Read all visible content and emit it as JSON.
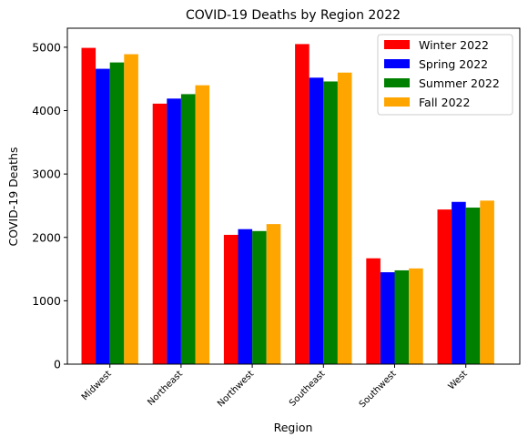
{
  "chart_data": {
    "type": "bar",
    "title": "COVID-19 Deaths by Region 2022",
    "xlabel": "Region",
    "ylabel": "COVID-19 Deaths",
    "categories": [
      "Midwest",
      "Northeast",
      "Northwest",
      "Southeast",
      "Southwest",
      "West"
    ],
    "ylim": [
      0,
      5300
    ],
    "yticks": [
      0,
      1000,
      2000,
      3000,
      4000,
      5000
    ],
    "legend_position": "top-right",
    "grid": false,
    "series": [
      {
        "name": "Winter 2022",
        "color": "#ff0000",
        "values": [
          4990,
          4110,
          2040,
          5050,
          1670,
          2440
        ]
      },
      {
        "name": "Spring 2022",
        "color": "#0000ff",
        "values": [
          4660,
          4190,
          2130,
          4520,
          1450,
          2560
        ]
      },
      {
        "name": "Summer 2022",
        "color": "#008000",
        "values": [
          4760,
          4260,
          2100,
          4460,
          1480,
          2470
        ]
      },
      {
        "name": "Fall 2022",
        "color": "#ffa500",
        "values": [
          4890,
          4400,
          2210,
          4600,
          1510,
          2580
        ]
      }
    ]
  }
}
